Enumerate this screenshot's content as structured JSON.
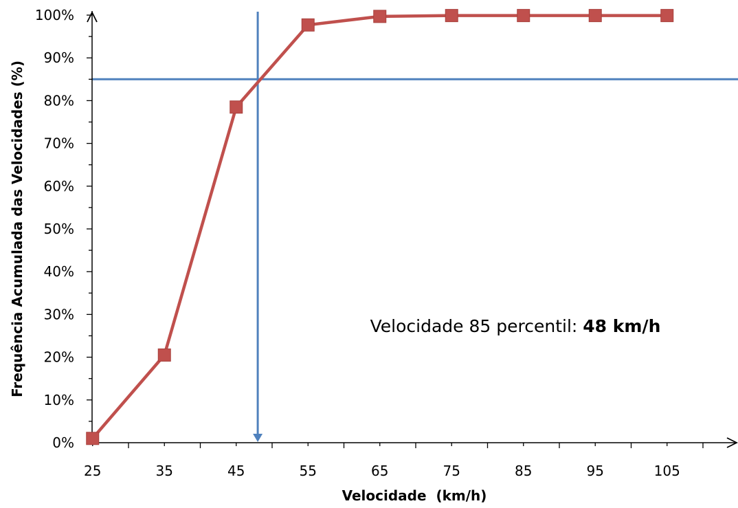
{
  "chart_data": {
    "type": "line",
    "xlabel": "Velocidade  (km/h)",
    "ylabel": "Frequência Acumulada das Velocidades (%)",
    "x": [
      25,
      35,
      45,
      55,
      65,
      75,
      85,
      95,
      105
    ],
    "x_tick_labels": [
      "25",
      "35",
      "45",
      "55",
      "65",
      "75",
      "85",
      "95",
      "105"
    ],
    "y_tick_labels": [
      "0%",
      "10%",
      "20%",
      "30%",
      "40%",
      "50%",
      "60%",
      "70%",
      "80%",
      "90%",
      "100%"
    ],
    "ylim": [
      0,
      100
    ],
    "series": [
      {
        "values": [
          1,
          20.5,
          78.5,
          97.7,
          99.7,
          99.9,
          99.9,
          99.9,
          99.9
        ],
        "color": "#c0504d",
        "marker": "square"
      }
    ],
    "reference_lines": {
      "horizontal_percent": 85,
      "vertical_kmh": 48,
      "color": "#4f81bd"
    },
    "annotation": {
      "prefix": "Velocidade 85 percentil: ",
      "value": "48 km/h"
    },
    "grid": false,
    "legend": "none"
  }
}
